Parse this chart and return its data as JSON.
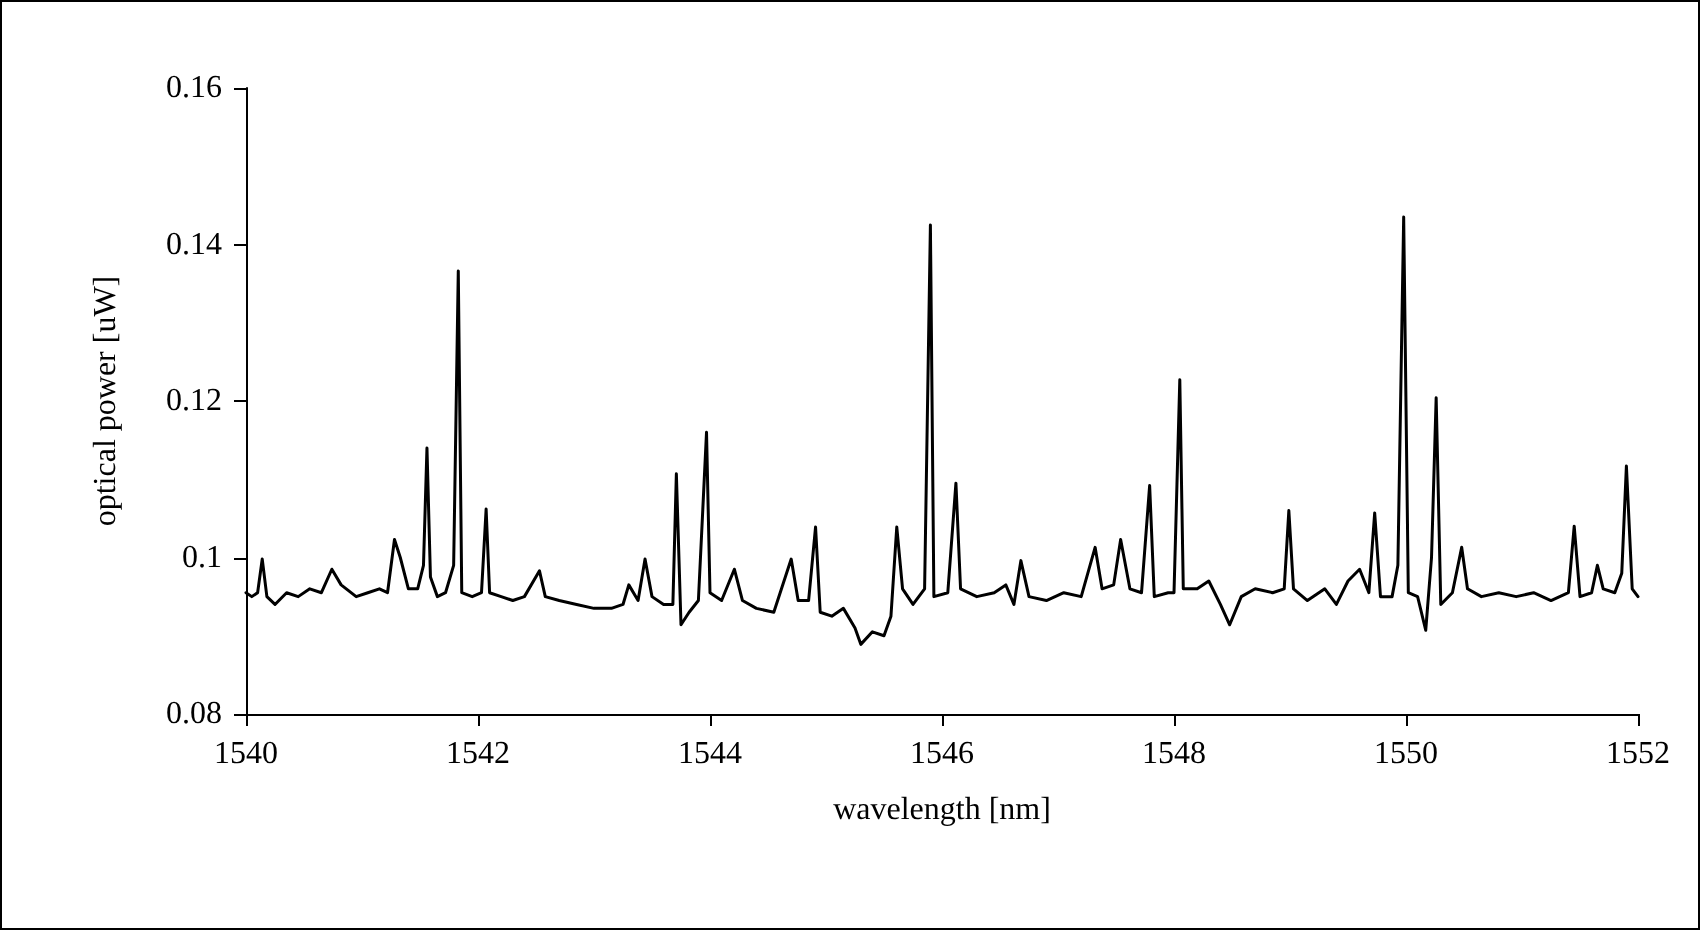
{
  "chart_data": {
    "type": "line",
    "xlabel": "wavelength [nm]",
    "ylabel": "optical power [uW]",
    "xlim": [
      1540,
      1552
    ],
    "xticks": [
      1540,
      1542,
      1544,
      1546,
      1548,
      1550,
      1552
    ],
    "ylim": [
      0.08,
      0.16
    ],
    "yticks": [
      0.08,
      0.1,
      0.12,
      0.14,
      0.16
    ],
    "grid": false,
    "marker": "none",
    "line_style": "solid",
    "series": [
      {
        "color": "#000000",
        "x": [
          1540.0,
          1540.05,
          1540.1,
          1540.14,
          1540.18,
          1540.25,
          1540.35,
          1540.45,
          1540.55,
          1540.65,
          1540.74,
          1540.82,
          1540.95,
          1541.05,
          1541.15,
          1541.22,
          1541.28,
          1541.33,
          1541.4,
          1541.48,
          1541.53,
          1541.56,
          1541.59,
          1541.65,
          1541.72,
          1541.79,
          1541.83,
          1541.86,
          1541.95,
          1542.03,
          1542.07,
          1542.1,
          1542.2,
          1542.3,
          1542.4,
          1542.53,
          1542.58,
          1542.7,
          1542.85,
          1543.0,
          1543.15,
          1543.25,
          1543.3,
          1543.38,
          1543.44,
          1543.5,
          1543.6,
          1543.68,
          1543.71,
          1543.75,
          1543.82,
          1543.9,
          1543.97,
          1544.0,
          1544.1,
          1544.21,
          1544.28,
          1544.4,
          1544.55,
          1544.7,
          1544.76,
          1544.85,
          1544.91,
          1544.95,
          1545.05,
          1545.15,
          1545.25,
          1545.3,
          1545.4,
          1545.5,
          1545.56,
          1545.61,
          1545.66,
          1545.75,
          1545.85,
          1545.9,
          1545.93,
          1546.05,
          1546.12,
          1546.16,
          1546.3,
          1546.45,
          1546.55,
          1546.62,
          1546.68,
          1546.75,
          1546.9,
          1547.05,
          1547.2,
          1547.32,
          1547.38,
          1547.48,
          1547.54,
          1547.62,
          1547.72,
          1547.79,
          1547.83,
          1547.95,
          1548.0,
          1548.05,
          1548.08,
          1548.2,
          1548.3,
          1548.4,
          1548.48,
          1548.58,
          1548.7,
          1548.85,
          1548.95,
          1548.99,
          1549.03,
          1549.15,
          1549.3,
          1549.4,
          1549.5,
          1549.6,
          1549.68,
          1549.73,
          1549.78,
          1549.88,
          1549.93,
          1549.98,
          1550.02,
          1550.1,
          1550.17,
          1550.22,
          1550.26,
          1550.3,
          1550.4,
          1550.48,
          1550.53,
          1550.65,
          1550.8,
          1550.95,
          1551.1,
          1551.25,
          1551.4,
          1551.45,
          1551.5,
          1551.6,
          1551.65,
          1551.7,
          1551.8,
          1551.86,
          1551.9,
          1551.95,
          1552.0
        ],
        "values": [
          0.0955,
          0.095,
          0.0955,
          0.0998,
          0.095,
          0.094,
          0.0955,
          0.095,
          0.096,
          0.0955,
          0.0985,
          0.0965,
          0.095,
          0.0955,
          0.096,
          0.0955,
          0.1023,
          0.1,
          0.096,
          0.096,
          0.099,
          0.114,
          0.0975,
          0.095,
          0.0955,
          0.099,
          0.1366,
          0.0955,
          0.095,
          0.0955,
          0.1062,
          0.0955,
          0.095,
          0.0945,
          0.095,
          0.0983,
          0.095,
          0.0945,
          0.094,
          0.0935,
          0.0935,
          0.094,
          0.0965,
          0.0945,
          0.0998,
          0.095,
          0.094,
          0.094,
          0.1107,
          0.0914,
          0.093,
          0.0945,
          0.116,
          0.0955,
          0.0945,
          0.0985,
          0.0945,
          0.0935,
          0.093,
          0.0998,
          0.0945,
          0.0945,
          0.1039,
          0.093,
          0.0925,
          0.0935,
          0.091,
          0.0889,
          0.0905,
          0.09,
          0.0925,
          0.1039,
          0.096,
          0.094,
          0.096,
          0.1425,
          0.095,
          0.0955,
          0.1095,
          0.096,
          0.095,
          0.0955,
          0.0965,
          0.094,
          0.0996,
          0.095,
          0.0945,
          0.0955,
          0.095,
          0.1013,
          0.096,
          0.0965,
          0.1023,
          0.096,
          0.0955,
          0.1092,
          0.095,
          0.0955,
          0.0955,
          0.1227,
          0.096,
          0.096,
          0.097,
          0.094,
          0.0914,
          0.095,
          0.096,
          0.0955,
          0.096,
          0.106,
          0.096,
          0.0945,
          0.096,
          0.094,
          0.097,
          0.0985,
          0.0955,
          0.1057,
          0.095,
          0.095,
          0.099,
          0.1435,
          0.0955,
          0.095,
          0.0907,
          0.1,
          0.1204,
          0.094,
          0.0955,
          0.1013,
          0.096,
          0.095,
          0.0955,
          0.095,
          0.0955,
          0.0945,
          0.0955,
          0.104,
          0.095,
          0.0955,
          0.099,
          0.096,
          0.0955,
          0.098,
          0.1117,
          0.096,
          0.095
        ]
      }
    ]
  }
}
